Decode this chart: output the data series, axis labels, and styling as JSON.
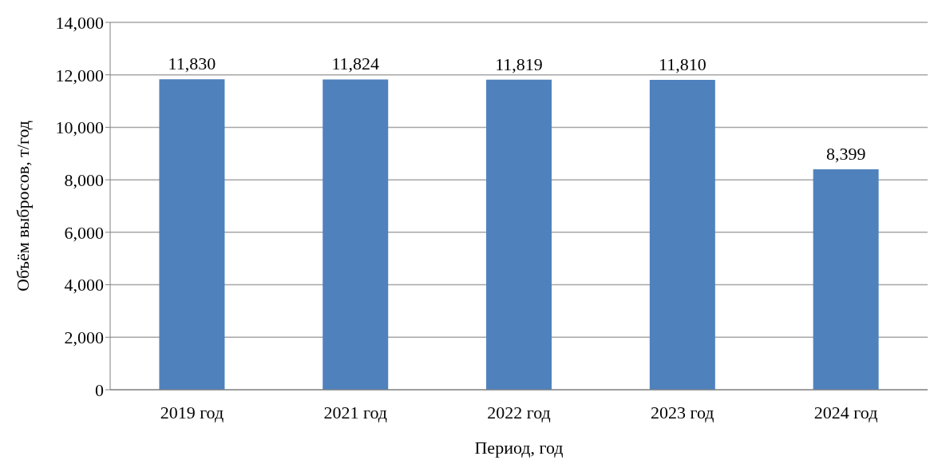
{
  "chart_data": {
    "type": "bar",
    "xlabel": "Период, год",
    "ylabel": "Объём выбросов, т/год",
    "categories": [
      "2019 год",
      "2021 год",
      "2022 год",
      "2023 год",
      "2024 год"
    ],
    "values": [
      11830,
      11824,
      11819,
      11810,
      8399
    ],
    "value_labels": [
      "11,830",
      "11,824",
      "11,819",
      "11,810",
      "8,399"
    ],
    "color": "#4f81bd",
    "ylim": [
      0,
      14000
    ],
    "yticks": [
      0,
      {
        "value": 2000,
        "label": "2,000"
      },
      {
        "value": 4000,
        "label": "4,000"
      },
      {
        "value": 6000,
        "label": "6,000"
      },
      {
        "value": 8000,
        "label": "8,000"
      },
      {
        "value": 10000,
        "label": "10,000"
      },
      {
        "value": 12000,
        "label": "12,000"
      },
      {
        "value": 14000,
        "label": "14,000"
      }
    ],
    "grid": "y",
    "legend": false
  }
}
